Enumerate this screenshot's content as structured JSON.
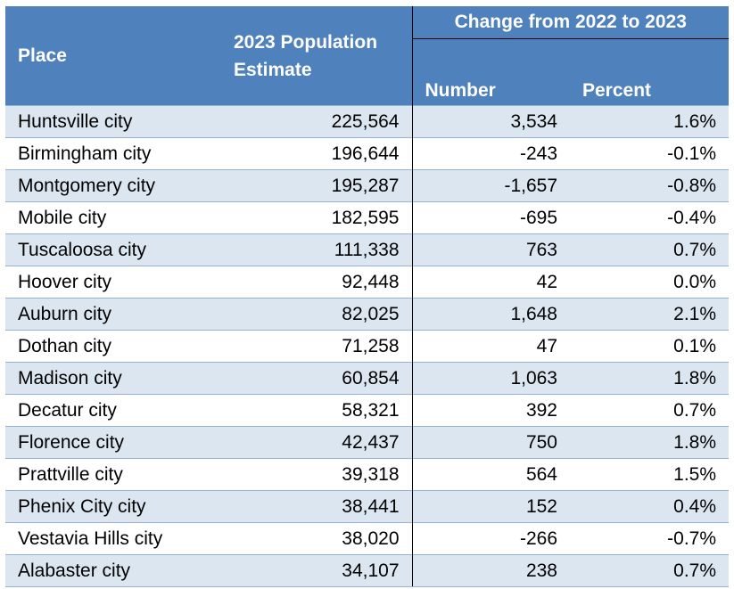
{
  "table": {
    "headers": {
      "place": "Place",
      "population_line1": "2023 Population",
      "population_line2": "Estimate",
      "change_group": "Change from 2022 to 2023",
      "number": "Number",
      "percent": "Percent"
    },
    "rows": [
      {
        "place": "Huntsville city",
        "population": "225,564",
        "number": "3,534",
        "percent": "1.6%"
      },
      {
        "place": "Birmingham city",
        "population": "196,644",
        "number": "-243",
        "percent": "-0.1%"
      },
      {
        "place": "Montgomery city",
        "population": "195,287",
        "number": "-1,657",
        "percent": "-0.8%"
      },
      {
        "place": "Mobile city",
        "population": "182,595",
        "number": "-695",
        "percent": "-0.4%"
      },
      {
        "place": "Tuscaloosa city",
        "population": "111,338",
        "number": "763",
        "percent": "0.7%"
      },
      {
        "place": "Hoover city",
        "population": "92,448",
        "number": "42",
        "percent": "0.0%"
      },
      {
        "place": "Auburn city",
        "population": "82,025",
        "number": "1,648",
        "percent": "2.1%"
      },
      {
        "place": "Dothan city",
        "population": "71,258",
        "number": "47",
        "percent": "0.1%"
      },
      {
        "place": "Madison city",
        "population": "60,854",
        "number": "1,063",
        "percent": "1.8%"
      },
      {
        "place": "Decatur city",
        "population": "58,321",
        "number": "392",
        "percent": "0.7%"
      },
      {
        "place": "Florence city",
        "population": "42,437",
        "number": "750",
        "percent": "1.8%"
      },
      {
        "place": "Prattville city",
        "population": "39,318",
        "number": "564",
        "percent": "1.5%"
      },
      {
        "place": "Phenix City city",
        "population": "38,441",
        "number": "152",
        "percent": "0.4%"
      },
      {
        "place": "Vestavia Hills city",
        "population": "38,020",
        "number": "-266",
        "percent": "-0.7%"
      },
      {
        "place": "Alabaster city",
        "population": "34,107",
        "number": "238",
        "percent": "0.7%"
      }
    ],
    "colors": {
      "header_bg": "#4f81bd",
      "header_text": "#ffffff",
      "band_row": "#dce6f1",
      "plain_row": "#ffffff",
      "row_border": "#95b3d7"
    }
  }
}
